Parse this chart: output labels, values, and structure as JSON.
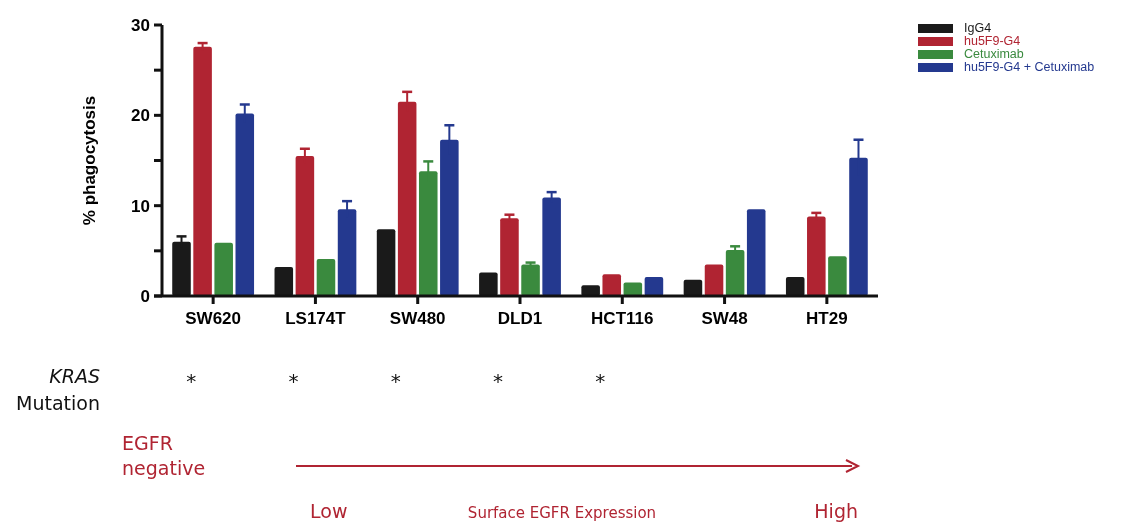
{
  "chart_data": {
    "type": "bar",
    "ylabel": "% phagocytosis",
    "categories": [
      "SW620",
      "LS174T",
      "SW480",
      "DLD1",
      "HCT116",
      "SW48",
      "HT29"
    ],
    "series": [
      {
        "name": "IgG4",
        "color": "#1a1a1a",
        "values": [
          6.0,
          3.2,
          7.4,
          2.6,
          1.2,
          1.8,
          2.1
        ],
        "errors": [
          0.6,
          null,
          null,
          null,
          null,
          null,
          null
        ]
      },
      {
        "name": "hu5F9-G4",
        "color": "#b02432",
        "values": [
          27.6,
          15.5,
          21.5,
          8.6,
          2.4,
          3.5,
          8.8
        ],
        "errors": [
          0.4,
          0.8,
          1.1,
          0.4,
          null,
          null,
          0.4
        ]
      },
      {
        "name": "Cetuximab",
        "color": "#3a8a3e",
        "values": [
          5.9,
          4.1,
          13.8,
          3.5,
          1.5,
          5.1,
          4.4
        ],
        "errors": [
          null,
          null,
          1.1,
          0.2,
          null,
          0.4,
          null
        ]
      },
      {
        "name": "hu5F9-G4 + Cetuximab",
        "color": "#24398f",
        "values": [
          20.2,
          9.6,
          17.3,
          10.9,
          2.1,
          9.6,
          15.3
        ],
        "errors": [
          1.0,
          0.9,
          1.6,
          0.6,
          null,
          null,
          2.0
        ]
      }
    ],
    "ylim": [
      0,
      30
    ],
    "yticks": [
      0,
      {
        "value": 5,
        "label": null
      },
      10,
      {
        "value": 15,
        "label": null
      },
      20,
      {
        "value": 25,
        "label": null
      },
      30
    ],
    "grid": false,
    "legend": "top right",
    "annotations": [
      "KRAS",
      "Mutation",
      "*",
      "*",
      "*",
      "*",
      "*",
      "EGFR negative",
      "Low",
      "Surface EGFR Expression",
      "High"
    ]
  }
}
